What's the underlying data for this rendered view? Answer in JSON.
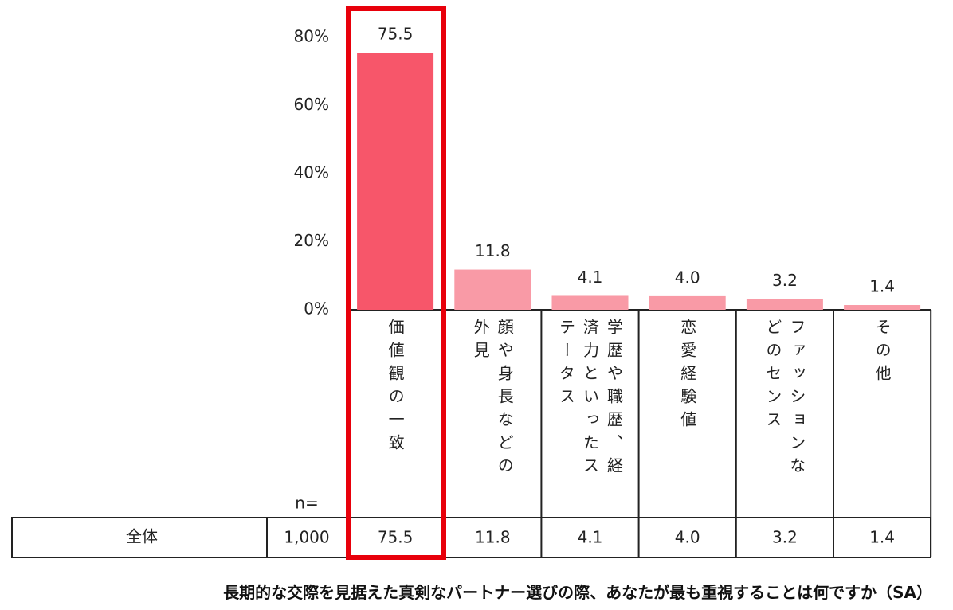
{
  "chart_data": {
    "type": "bar",
    "categories": [
      "価値観の一致",
      "顔や身長などの外見",
      "学歴や職歴、経済力といったステータス",
      "恋愛経験値",
      "ファッションなどのセンス",
      "その他"
    ],
    "values": [
      75.5,
      11.8,
      4.1,
      4.0,
      3.2,
      1.4
    ],
    "value_labels": [
      "75.5",
      "11.8",
      "4.1",
      "4.0",
      "3.2",
      "1.4"
    ],
    "colors": [
      "#f7566a",
      "#f99aa6",
      "#f99aa6",
      "#f99aa6",
      "#f99aa6",
      "#f99aa6"
    ],
    "ylim": [
      0,
      80
    ],
    "yticks": [
      {
        "value": 0,
        "label": "0%"
      },
      {
        "value": 20,
        "label": "20%"
      },
      {
        "value": 40,
        "label": "40%"
      },
      {
        "value": 60,
        "label": "60%"
      },
      {
        "value": 80,
        "label": "80%"
      }
    ],
    "grid": false,
    "table": {
      "n_header": "n=",
      "row_label": "全体",
      "n": {
        "value": 1000,
        "label": "1,000"
      }
    },
    "caption": "長期的な交際を見据えた真剣なパートナー選びの際、あなたが最も重視することは何ですか（SA）"
  }
}
